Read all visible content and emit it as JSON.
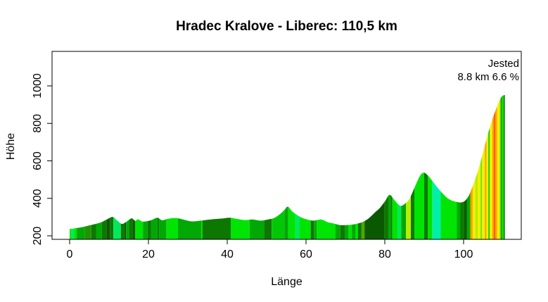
{
  "chart_data": {
    "type": "area",
    "title": "Hradec Kralove - Liberec: 110,5 km",
    "xlabel": "Länge",
    "ylabel": "Höhe",
    "total_distance_km": "110,5",
    "annotation": {
      "line1": "Jested",
      "line2": "8.8 km 6.6 %"
    },
    "x_ticks": [
      0,
      20,
      40,
      60,
      80,
      100
    ],
    "y_ticks": [
      200,
      400,
      600,
      800,
      1000
    ],
    "xlim": [
      0,
      110.5
    ],
    "ylim": [
      200,
      1000
    ],
    "grid": false,
    "profile_points": [
      [
        0,
        236
      ],
      [
        1,
        239
      ],
      [
        2,
        242
      ],
      [
        3.5,
        248
      ],
      [
        5,
        256
      ],
      [
        6.5,
        263
      ],
      [
        8,
        272
      ],
      [
        9.5,
        288
      ],
      [
        10.9,
        301
      ],
      [
        12,
        283
      ],
      [
        13.2,
        264
      ],
      [
        14.2,
        272
      ],
      [
        15.7,
        293
      ],
      [
        16.6,
        280
      ],
      [
        17.4,
        288
      ],
      [
        18.5,
        276
      ],
      [
        20,
        280
      ],
      [
        21,
        286
      ],
      [
        22.3,
        297
      ],
      [
        23.5,
        283
      ],
      [
        25,
        291
      ],
      [
        27,
        295
      ],
      [
        29,
        286
      ],
      [
        31,
        277
      ],
      [
        33.5,
        282
      ],
      [
        36,
        288
      ],
      [
        38.5,
        292
      ],
      [
        40.7,
        297
      ],
      [
        42.5,
        290
      ],
      [
        44.5,
        284
      ],
      [
        46.5,
        287
      ],
      [
        48.5,
        281
      ],
      [
        50.5,
        288
      ],
      [
        52,
        296
      ],
      [
        53.5,
        318
      ],
      [
        54.6,
        340
      ],
      [
        55.4,
        356
      ],
      [
        56.5,
        330
      ],
      [
        57.5,
        314
      ],
      [
        59,
        296
      ],
      [
        60.5,
        286
      ],
      [
        62,
        281
      ],
      [
        63.8,
        287
      ],
      [
        65.5,
        273
      ],
      [
        67,
        266
      ],
      [
        68.5,
        258
      ],
      [
        70,
        257
      ],
      [
        71.5,
        259
      ],
      [
        73,
        265
      ],
      [
        74.5,
        275
      ],
      [
        76,
        295
      ],
      [
        77.5,
        325
      ],
      [
        78.8,
        350
      ],
      [
        80,
        383
      ],
      [
        81.2,
        419
      ],
      [
        82.3,
        394
      ],
      [
        83.4,
        368
      ],
      [
        84.2,
        360
      ],
      [
        85.2,
        373
      ],
      [
        86.2,
        395
      ],
      [
        87.5,
        455
      ],
      [
        88.8,
        515
      ],
      [
        89.8,
        537
      ],
      [
        90.8,
        525
      ],
      [
        92,
        495
      ],
      [
        93.2,
        462
      ],
      [
        94.5,
        430
      ],
      [
        95.8,
        403
      ],
      [
        97,
        388
      ],
      [
        98.2,
        381
      ],
      [
        99.3,
        378
      ],
      [
        100.3,
        386
      ],
      [
        101.2,
        410
      ],
      [
        101.7,
        432
      ],
      [
        102.6,
        482
      ],
      [
        103.8,
        557
      ],
      [
        105,
        650
      ],
      [
        106.2,
        745
      ],
      [
        107.4,
        828
      ],
      [
        108.6,
        896
      ],
      [
        109.5,
        938
      ],
      [
        110.2,
        950
      ],
      [
        110.5,
        951
      ]
    ],
    "gradient_stripes": [
      [
        0,
        0.5,
        "bright"
      ],
      [
        0.5,
        1.1,
        "mint"
      ],
      [
        1.1,
        1.8,
        "bright"
      ],
      [
        1.8,
        3.8,
        "medium"
      ],
      [
        3.8,
        5.5,
        "forest"
      ],
      [
        5.5,
        6.7,
        "dark"
      ],
      [
        6.7,
        8.2,
        "medium"
      ],
      [
        8.2,
        9.4,
        "dark"
      ],
      [
        9.4,
        10.3,
        "darkest"
      ],
      [
        10.3,
        11.1,
        "dark"
      ],
      [
        11.1,
        13,
        "mint"
      ],
      [
        13,
        13.9,
        "dark"
      ],
      [
        13.9,
        14.3,
        "darkest"
      ],
      [
        14.3,
        15.1,
        "medium"
      ],
      [
        15.1,
        16,
        "dark"
      ],
      [
        16,
        16.6,
        "darkest"
      ],
      [
        16.6,
        18.6,
        "bright"
      ],
      [
        18.6,
        19.8,
        "medium"
      ],
      [
        19.8,
        20.7,
        "dark"
      ],
      [
        20.7,
        22.3,
        "medium"
      ],
      [
        22.3,
        22.7,
        "dark"
      ],
      [
        22.7,
        24.6,
        "medium"
      ],
      [
        24.6,
        27.5,
        "bright"
      ],
      [
        27.5,
        33.4,
        "medium"
      ],
      [
        33.4,
        33.7,
        "bright"
      ],
      [
        33.7,
        40.9,
        "dark"
      ],
      [
        40.9,
        45.7,
        "bright"
      ],
      [
        45.7,
        49.4,
        "medium"
      ],
      [
        49.4,
        51.3,
        "dark"
      ],
      [
        51.3,
        54.5,
        "green"
      ],
      [
        54.5,
        55.5,
        "medium"
      ],
      [
        55.5,
        57.3,
        "bright"
      ],
      [
        57.3,
        58.4,
        "mint"
      ],
      [
        58.4,
        61.2,
        "bright"
      ],
      [
        61.2,
        62.1,
        "dark"
      ],
      [
        62.1,
        62.7,
        "medium"
      ],
      [
        62.7,
        67.5,
        "bright"
      ],
      [
        67.5,
        68.7,
        "medium"
      ],
      [
        68.7,
        69.9,
        "dark"
      ],
      [
        69.9,
        70.8,
        "medium"
      ],
      [
        70.8,
        71.7,
        "bright"
      ],
      [
        71.7,
        72.6,
        "medium"
      ],
      [
        72.6,
        73.2,
        "bright"
      ],
      [
        73.2,
        74.1,
        "dark"
      ],
      [
        74.1,
        74.9,
        "olive"
      ],
      [
        74.9,
        79.9,
        "darkest"
      ],
      [
        79.9,
        80.9,
        "dark"
      ],
      [
        80.9,
        81.5,
        "medium"
      ],
      [
        81.5,
        81.9,
        "dark"
      ],
      [
        81.9,
        83.3,
        "bright"
      ],
      [
        83.3,
        84.2,
        "mint"
      ],
      [
        84.2,
        85.4,
        "medium"
      ],
      [
        85.4,
        86.6,
        "yellowgreen"
      ],
      [
        86.6,
        87.5,
        "dark"
      ],
      [
        87.5,
        90,
        "bright"
      ],
      [
        90,
        90.9,
        "dark"
      ],
      [
        90.9,
        92.1,
        "bright"
      ],
      [
        92.1,
        94.2,
        "cyan"
      ],
      [
        94.2,
        98.3,
        "bright"
      ],
      [
        98.3,
        99.2,
        "medium"
      ],
      [
        99.2,
        100.1,
        "dark"
      ],
      [
        100.1,
        100.8,
        "darkest"
      ],
      [
        100.8,
        101.7,
        "medium"
      ],
      [
        101.7,
        102.3,
        "orange"
      ],
      [
        102.3,
        103,
        "yellow"
      ],
      [
        103,
        103.6,
        "yellowgreen"
      ],
      [
        103.6,
        104.3,
        "yellow"
      ],
      [
        104.3,
        104.7,
        "lightgreen"
      ],
      [
        104.7,
        105.4,
        "yellow"
      ],
      [
        105.4,
        105.8,
        "orange"
      ],
      [
        105.8,
        106.3,
        "yellow"
      ],
      [
        106.3,
        106.6,
        "green"
      ],
      [
        106.6,
        107.3,
        "yellow"
      ],
      [
        107.3,
        107.7,
        "orange"
      ],
      [
        107.7,
        108.1,
        "redorange"
      ],
      [
        108.1,
        108.5,
        "orange"
      ],
      [
        108.5,
        109.1,
        "yellow"
      ],
      [
        109.1,
        109.4,
        "yellowgreen"
      ],
      [
        109.4,
        109.8,
        "medium"
      ],
      [
        109.8,
        110.2,
        "bright"
      ],
      [
        110.2,
        110.5,
        "dark"
      ]
    ],
    "palette": {
      "bright": "#00E404",
      "green": "#00C804",
      "medium": "#00A804",
      "forest": "#1E9400",
      "dark": "#0C7800",
      "darkest": "#0A5800",
      "olive": "#4FA600",
      "mint": "#00E95C",
      "cyan": "#00F0AC",
      "lightgreen": "#76E600",
      "yellowgreen": "#B8EC00",
      "yellow": "#F0F000",
      "orange": "#FFA000",
      "redorange": "#FF5A00"
    },
    "axis_color": "#000000",
    "text_color": "#000000"
  }
}
